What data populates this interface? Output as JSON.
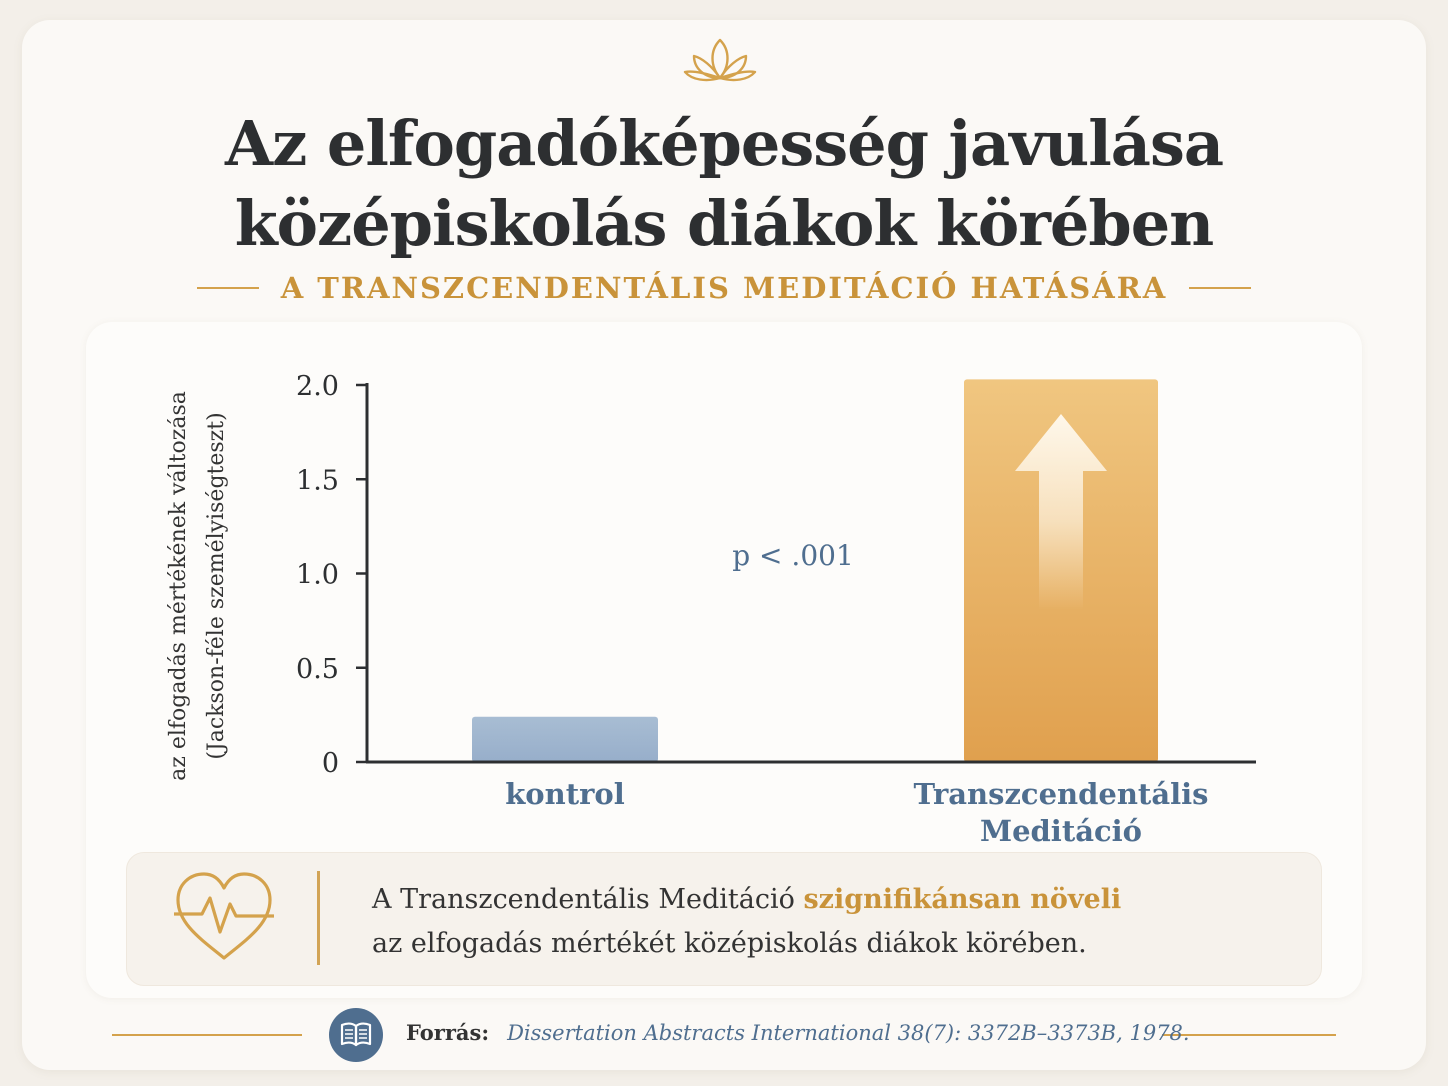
{
  "header": {
    "title_line1": "Az elfogadóképesség javulása",
    "title_line2": "középiskolás diákok körében",
    "subtitle": "A TRANSZCENDENTÁLIS MEDITÁCIÓ HATÁSÁRA"
  },
  "chart_data": {
    "type": "bar",
    "categories": [
      "kontrol",
      "Transzcendentális Meditáció"
    ],
    "category_lines": [
      [
        "kontrol"
      ],
      [
        "Transzcendentális",
        "Meditáció"
      ]
    ],
    "values": [
      0.24,
      2.03
    ],
    "ylabel_line1": "az elfogadás mértékének változása",
    "ylabel_line2": "(Jackson-féle személyiségteszt)",
    "ylim": [
      0,
      2.0
    ],
    "yticks": [
      0,
      0.5,
      1.0,
      1.5,
      2.0
    ],
    "ytick_labels": [
      "0",
      "0.5",
      "1.0",
      "1.5",
      "2.0"
    ],
    "annotation": "p < .001",
    "colors": [
      "#9db3cc",
      "#e6ac5c"
    ],
    "grid": false
  },
  "note": {
    "text_before": "A Transzcendentális Meditáció ",
    "highlight": "szignifikánsan növeli",
    "text_after": "az elfogadás mértékét középiskolás diákok körében."
  },
  "source": {
    "label": "Forrás:",
    "citation": "Dissertation Abstracts International 38(7): 3372B–3373B, 1978."
  },
  "icons": [
    "lotus-icon",
    "heart-pulse-icon",
    "book-icon",
    "arrow-up-icon"
  ],
  "colors": {
    "accent": "#c9933a",
    "navy": "#4f6e8f",
    "text": "#2d2f31"
  }
}
